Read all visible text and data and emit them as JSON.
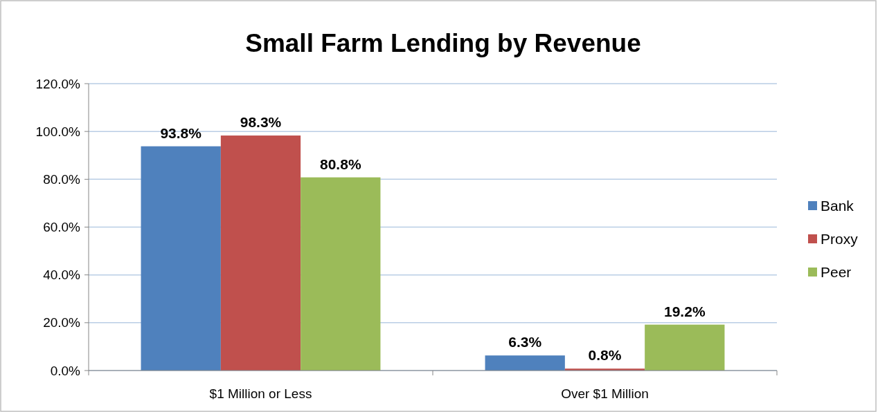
{
  "chart_data": {
    "type": "bar",
    "title": "Small Farm Lending by Revenue",
    "categories": [
      "$1 Million or Less",
      "Over $1 Million"
    ],
    "series": [
      {
        "name": "Bank",
        "color": "#4f81bd",
        "values": [
          93.8,
          6.3
        ],
        "value_labels": [
          "93.8%",
          "6.3%"
        ]
      },
      {
        "name": "Proxy",
        "color": "#c0504d",
        "values": [
          98.3,
          0.8
        ],
        "value_labels": [
          "98.3%",
          "0.8%"
        ]
      },
      {
        "name": "Peer",
        "color": "#9bbb59",
        "values": [
          80.8,
          19.2
        ],
        "value_labels": [
          "80.8%",
          "19.2%"
        ]
      }
    ],
    "ylim": [
      0,
      120
    ],
    "yticks": [
      {
        "value": 0,
        "label": "0.0%"
      },
      {
        "value": 20,
        "label": "20.0%"
      },
      {
        "value": 40,
        "label": "40.0%"
      },
      {
        "value": 60,
        "label": "60.0%"
      },
      {
        "value": 80,
        "label": "80.0%"
      },
      {
        "value": 100,
        "label": "100.0%"
      },
      {
        "value": 120,
        "label": "120.0%"
      }
    ],
    "grid": "y",
    "legend": "right"
  }
}
